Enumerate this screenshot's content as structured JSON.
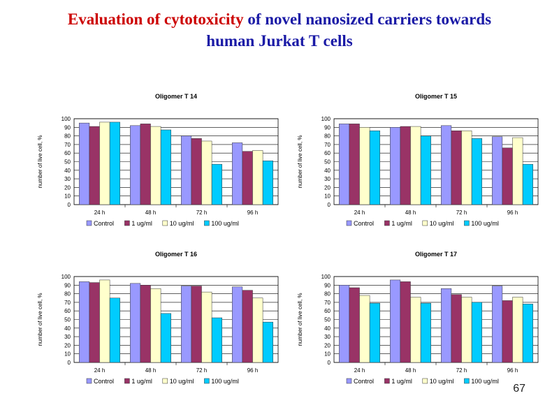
{
  "slide": {
    "title_part1": "Evaluation of cytotoxicity",
    "title_part2": " of novel  nanosized carriers towards",
    "title_line2": "human Jurkat T cells",
    "slide_number": "67"
  },
  "colors": {
    "title_red": "#cc0000",
    "title_blue": "#1a1aa6",
    "series": [
      "#9999ff",
      "#993366",
      "#ffffcc",
      "#00ccff"
    ]
  },
  "chart_data": [
    {
      "type": "bar",
      "title": "Oligomer T 14",
      "ylabel": "number of live cell, %",
      "xlabel": "",
      "ylim": [
        0,
        100
      ],
      "yticks": [
        0,
        10,
        20,
        30,
        40,
        50,
        60,
        70,
        80,
        90,
        100
      ],
      "grid": true,
      "legend": "bottom",
      "categories": [
        "24 h",
        "48 h",
        "72 h",
        "96 h"
      ],
      "series": [
        {
          "name": "Control",
          "values": [
            95,
            92,
            80,
            72
          ]
        },
        {
          "name": "1 ug/ml",
          "values": [
            91,
            94,
            77,
            62
          ]
        },
        {
          "name": "10 ug/ml",
          "values": [
            96,
            91,
            74,
            63
          ]
        },
        {
          "name": "100 ug/ml",
          "values": [
            96,
            87,
            47,
            51
          ]
        }
      ]
    },
    {
      "type": "bar",
      "title": "Oligomer T 15",
      "ylabel": "number of live cell, %",
      "xlabel": "",
      "ylim": [
        0,
        100
      ],
      "yticks": [
        0,
        10,
        20,
        30,
        40,
        50,
        60,
        70,
        80,
        90,
        100
      ],
      "grid": true,
      "legend": "bottom",
      "categories": [
        "24 h",
        "48 h",
        "72 h",
        "96 h"
      ],
      "series": [
        {
          "name": "Control",
          "values": [
            94,
            90,
            92,
            79
          ]
        },
        {
          "name": "1 ug/ml",
          "values": [
            94,
            91,
            86,
            66
          ]
        },
        {
          "name": "10 ug/ml",
          "values": [
            90,
            91,
            86,
            78
          ]
        },
        {
          "name": "100 ug/ml",
          "values": [
            86,
            80,
            77,
            47
          ]
        }
      ]
    },
    {
      "type": "bar",
      "title": "Oligomer T 16",
      "ylabel": "number of live cell, %",
      "xlabel": "",
      "ylim": [
        0,
        100
      ],
      "yticks": [
        0,
        10,
        20,
        30,
        40,
        50,
        60,
        70,
        80,
        90,
        100
      ],
      "grid": true,
      "legend": "bottom",
      "categories": [
        "24 h",
        "48 h",
        "72 h",
        "96 h"
      ],
      "series": [
        {
          "name": "Control",
          "values": [
            94,
            92,
            89,
            88
          ]
        },
        {
          "name": "1 ug/ml",
          "values": [
            93,
            90,
            89,
            84
          ]
        },
        {
          "name": "10 ug/ml",
          "values": [
            96,
            86,
            82,
            75
          ]
        },
        {
          "name": "100 ug/ml",
          "values": [
            75,
            57,
            52,
            47
          ]
        }
      ]
    },
    {
      "type": "bar",
      "title": "Oligomer T 17",
      "ylabel": "number of live cell, %",
      "xlabel": "",
      "ylim": [
        0,
        100
      ],
      "yticks": [
        0,
        10,
        20,
        30,
        40,
        50,
        60,
        70,
        80,
        90,
        100
      ],
      "grid": true,
      "legend": "bottom",
      "categories": [
        "24 h",
        "48 h",
        "72 h",
        "96 h"
      ],
      "series": [
        {
          "name": "Control",
          "values": [
            90,
            96,
            86,
            89
          ]
        },
        {
          "name": "1 ug/ml",
          "values": [
            87,
            94,
            79,
            72
          ]
        },
        {
          "name": "10 ug/ml",
          "values": [
            78,
            76,
            76,
            76
          ]
        },
        {
          "name": "100 ug/ml",
          "values": [
            69,
            69,
            70,
            68
          ]
        }
      ]
    }
  ]
}
